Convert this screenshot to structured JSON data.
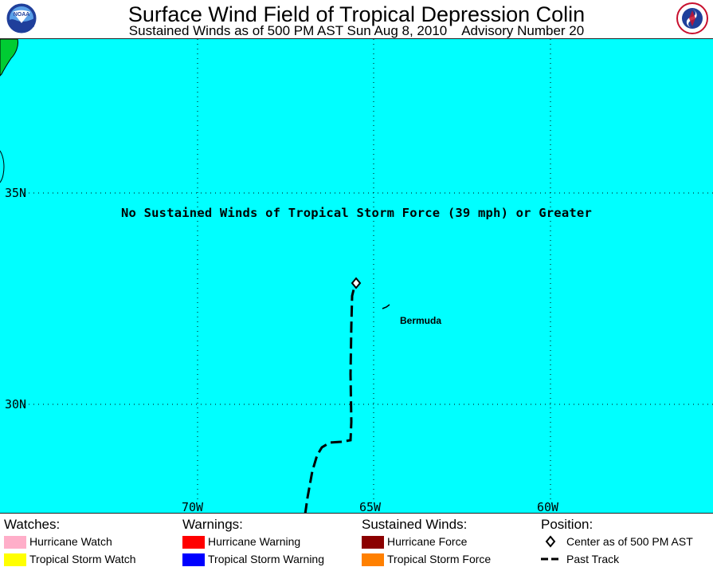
{
  "header": {
    "title": "Surface Wind Field of Tropical Depression Colin",
    "subtitle": "Sustained Winds as of 500 PM AST Sun Aug 8, 2010    Advisory Number 20",
    "left_logo_icon": "noaa-logo-icon",
    "left_logo_text": "NOAA",
    "right_logo_icon": "nws-logo-icon"
  },
  "map": {
    "background_color": "#00ffff",
    "latitude_labels": [
      "35N",
      "30N"
    ],
    "longitude_labels": [
      "70W",
      "65W",
      "60W"
    ],
    "notice": "No Sustained Winds of Tropical Storm Force (39 mph) or Greater",
    "places": [
      {
        "name": "Bermuda",
        "lat": 32.3,
        "lon": -64.8
      }
    ],
    "storm_center": {
      "lat": 32.8,
      "lon": -65.0
    },
    "past_track_icon": "dashed-track-line"
  },
  "legend": {
    "watches": {
      "heading": "Watches:",
      "items": [
        {
          "label": "Hurricane Watch",
          "color": "#ffaec9"
        },
        {
          "label": "Tropical Storm Watch",
          "color": "#ffff00"
        }
      ]
    },
    "warnings": {
      "heading": "Warnings:",
      "items": [
        {
          "label": "Hurricane Warning",
          "color": "#ff0000"
        },
        {
          "label": "Tropical Storm Warning",
          "color": "#0000ff"
        }
      ]
    },
    "sustained_winds": {
      "heading": "Sustained Winds:",
      "items": [
        {
          "label": "Hurricane Force",
          "color": "#8b0000"
        },
        {
          "label": "Tropical Storm Force",
          "color": "#ff8000"
        }
      ]
    },
    "position": {
      "heading": "Position:",
      "items": [
        {
          "label": "Center as of 500 PM AST",
          "icon": "diamond-icon"
        },
        {
          "label": "Past Track",
          "icon": "dashed-line-icon"
        }
      ]
    }
  }
}
